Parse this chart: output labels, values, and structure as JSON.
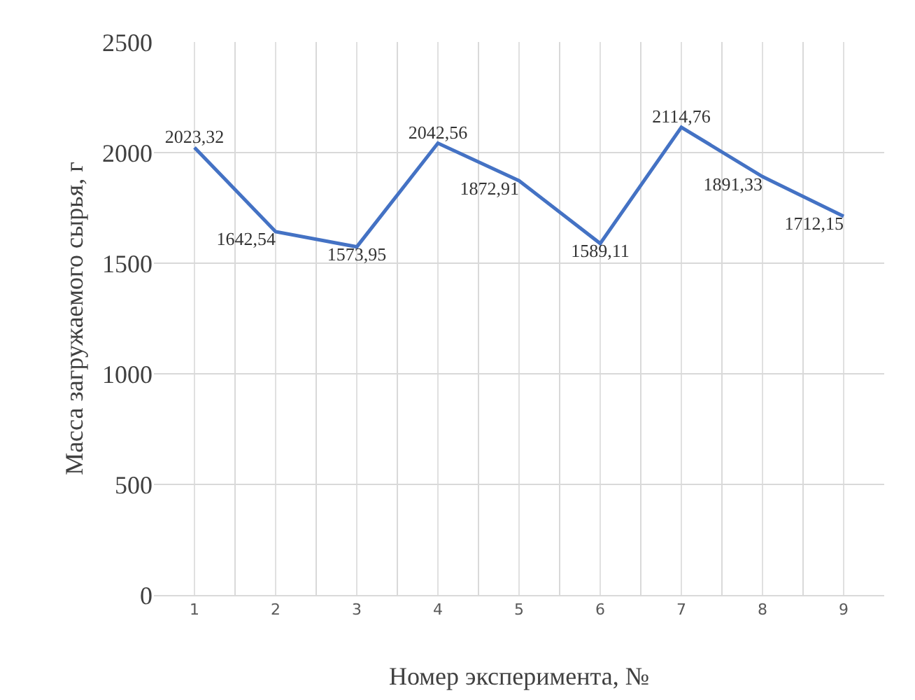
{
  "chart_data": {
    "type": "line",
    "xlabel": "Номер эксперимента, №",
    "ylabel": "Масса загружаемого сырья, г",
    "categories": [
      "1",
      "2",
      "3",
      "4",
      "5",
      "6",
      "7",
      "8",
      "9"
    ],
    "series": [
      {
        "color": "#4472c4",
        "values": [
          2023.32,
          1642.54,
          1573.95,
          2042.56,
          1872.91,
          1589.11,
          2114.76,
          1891.33,
          1712.15
        ],
        "value_labels": [
          "2023,32",
          "1642,54",
          "1573,95",
          "2042,56",
          "1872,91",
          "1589,11",
          "2114,76",
          "1891,33",
          "1712,15"
        ]
      }
    ],
    "ylim": [
      0,
      2500
    ],
    "yticks": [
      0,
      500,
      1000,
      1500,
      2000,
      2500
    ],
    "grid": true,
    "marker": "none",
    "line_style": "solid"
  }
}
